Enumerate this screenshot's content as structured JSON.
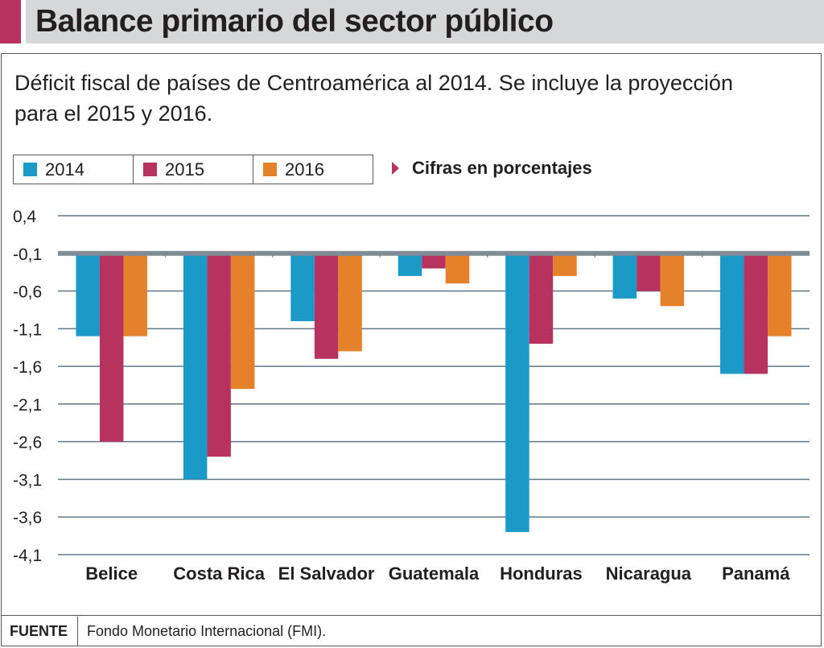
{
  "header": {
    "title": "Balance primario del sector público",
    "subtitle": "Déficit fiscal de países de Centroamérica al 2014. Se incluye la proyección para el 2015 y 2016.",
    "unit_note": "Cifras en porcentajes"
  },
  "legend": [
    {
      "label": "2014",
      "color": "#1b9ac7"
    },
    {
      "label": "2015",
      "color": "#b8325f"
    },
    {
      "label": "2016",
      "color": "#e5812a"
    }
  ],
  "source": {
    "label": "FUENTE",
    "text": "Fondo Monetario Internacional (FMI)."
  },
  "chart_data": {
    "type": "bar",
    "categories": [
      "Belice",
      "Costa Rica",
      "El Salvador",
      "Guatemala",
      "Honduras",
      "Nicaragua",
      "Panamá"
    ],
    "series": [
      {
        "name": "2014",
        "color": "#1b9ac7",
        "values": [
          -1.2,
          -3.1,
          -1.0,
          -0.4,
          -3.8,
          -0.7,
          -1.7
        ]
      },
      {
        "name": "2015",
        "color": "#b8325f",
        "values": [
          -2.6,
          -2.8,
          -1.5,
          -0.3,
          -1.3,
          -0.6,
          -1.7
        ]
      },
      {
        "name": "2016",
        "color": "#e5812a",
        "values": [
          -1.2,
          -1.9,
          -1.4,
          -0.5,
          -0.4,
          -0.8,
          -1.2
        ]
      }
    ],
    "yticks": [
      "0,4",
      "-0,1",
      "-0,6",
      "-1,1",
      "-1,6",
      "-2,1",
      "-2,6",
      "-3,1",
      "-3,6",
      "-4,1"
    ],
    "ytick_values": [
      0.4,
      -0.1,
      -0.6,
      -1.1,
      -1.6,
      -2.1,
      -2.6,
      -3.1,
      -3.6,
      -4.1
    ],
    "ylim": [
      -4.1,
      0.4
    ],
    "baseline": -0.1,
    "grid": true,
    "legend_position": "top-left"
  }
}
